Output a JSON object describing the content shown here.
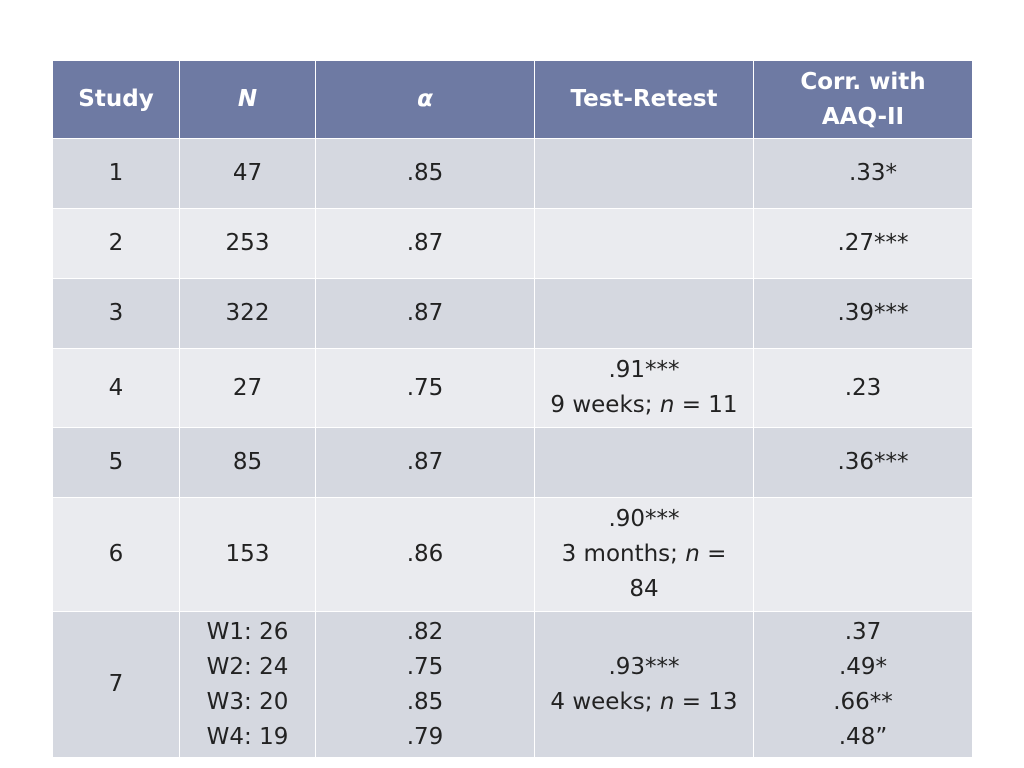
{
  "headers": {
    "study": "Study",
    "n": "N",
    "alpha": "α",
    "test_retest": "Test-Retest",
    "corr_line1": "Corr. with",
    "corr_line2": "AAQ-II"
  },
  "rows": [
    {
      "study": "1",
      "n": "47",
      "alpha": ".85",
      "corr": ".33*"
    },
    {
      "study": "2",
      "n": "253",
      "alpha": ".87",
      "corr": ".27***"
    },
    {
      "study": "3",
      "n": "322",
      "alpha": ".87",
      "corr": ".39***"
    },
    {
      "study": "4",
      "n": "27",
      "alpha": ".75",
      "tr_value": ".91***",
      "tr_period": "9 weeks; ",
      "tr_n_symbol": "n",
      "tr_n_value": " = 11",
      "corr": ".23"
    },
    {
      "study": "5",
      "n": "85",
      "alpha": ".87",
      "corr": ".36***"
    },
    {
      "study": "6",
      "n": "153",
      "alpha": ".86",
      "tr_value": ".90***",
      "tr_period": "3 months; ",
      "tr_n_symbol": "n",
      "tr_n_value": " =",
      "tr_n_wrap": "84",
      "corr": ""
    },
    {
      "study": "7",
      "n_lines": [
        "W1: 26",
        "W2: 24",
        "W3: 20",
        "W4: 19"
      ],
      "alpha_lines": [
        ".82",
        ".75",
        ".85",
        ".79"
      ],
      "tr_value": ".93***",
      "tr_period": "4 weeks; ",
      "tr_n_symbol": "n",
      "tr_n_value": " = 13",
      "corr_lines": [
        ".37",
        ".49*",
        ".66**",
        ".48”"
      ]
    }
  ]
}
